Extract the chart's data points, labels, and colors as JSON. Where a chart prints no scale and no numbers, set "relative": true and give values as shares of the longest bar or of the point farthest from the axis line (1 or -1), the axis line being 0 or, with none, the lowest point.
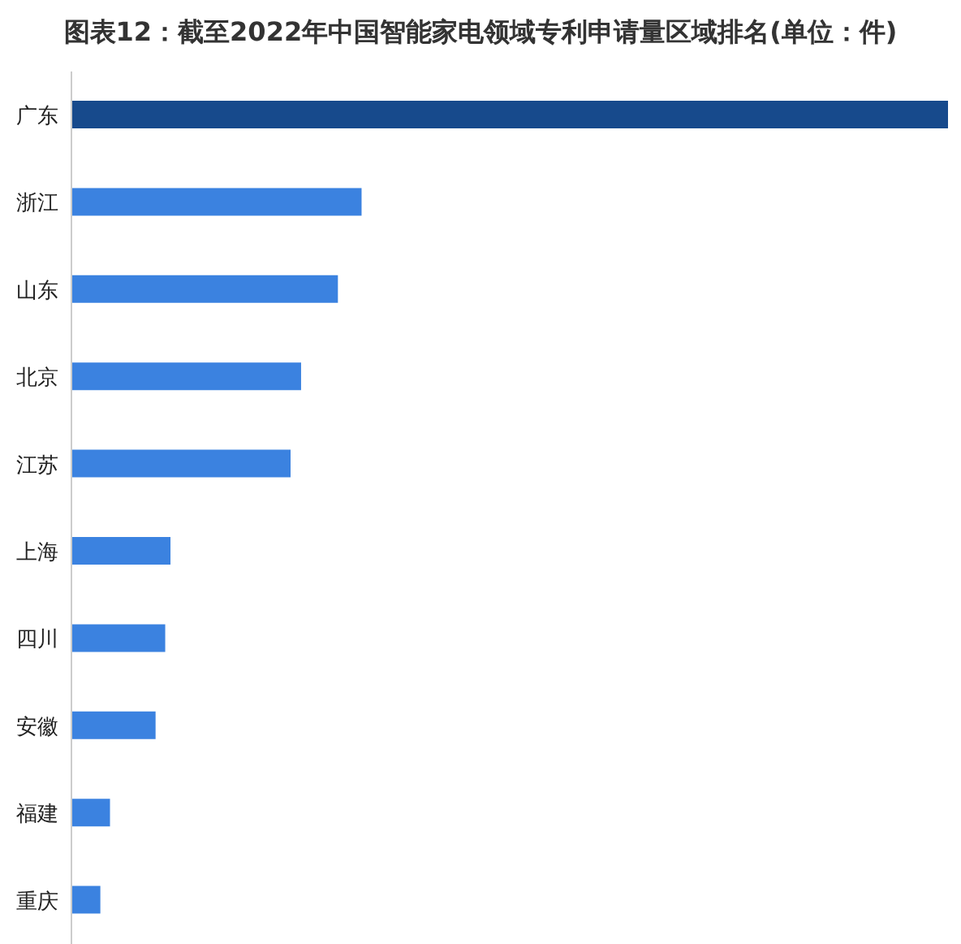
{
  "chart_data": {
    "type": "bar",
    "orientation": "horizontal",
    "relative": true,
    "title": "图表12：截至2022年中国智能家电领域专利申请量区域排名(单位：件)",
    "categories": [
      "广东",
      "浙江",
      "山东",
      "北京",
      "江苏",
      "上海",
      "四川",
      "安徽",
      "福建",
      "重庆"
    ],
    "values": [
      1,
      0.331,
      0.304,
      0.262,
      0.25,
      0.113,
      0.107,
      0.096,
      0.044,
      0.033
    ],
    "colors": [
      "#174a8c",
      "#3b82e0",
      "#3b82e0",
      "#3b82e0",
      "#3b82e0",
      "#3b82e0",
      "#3b82e0",
      "#3b82e0",
      "#3b82e0",
      "#3b82e0"
    ]
  }
}
